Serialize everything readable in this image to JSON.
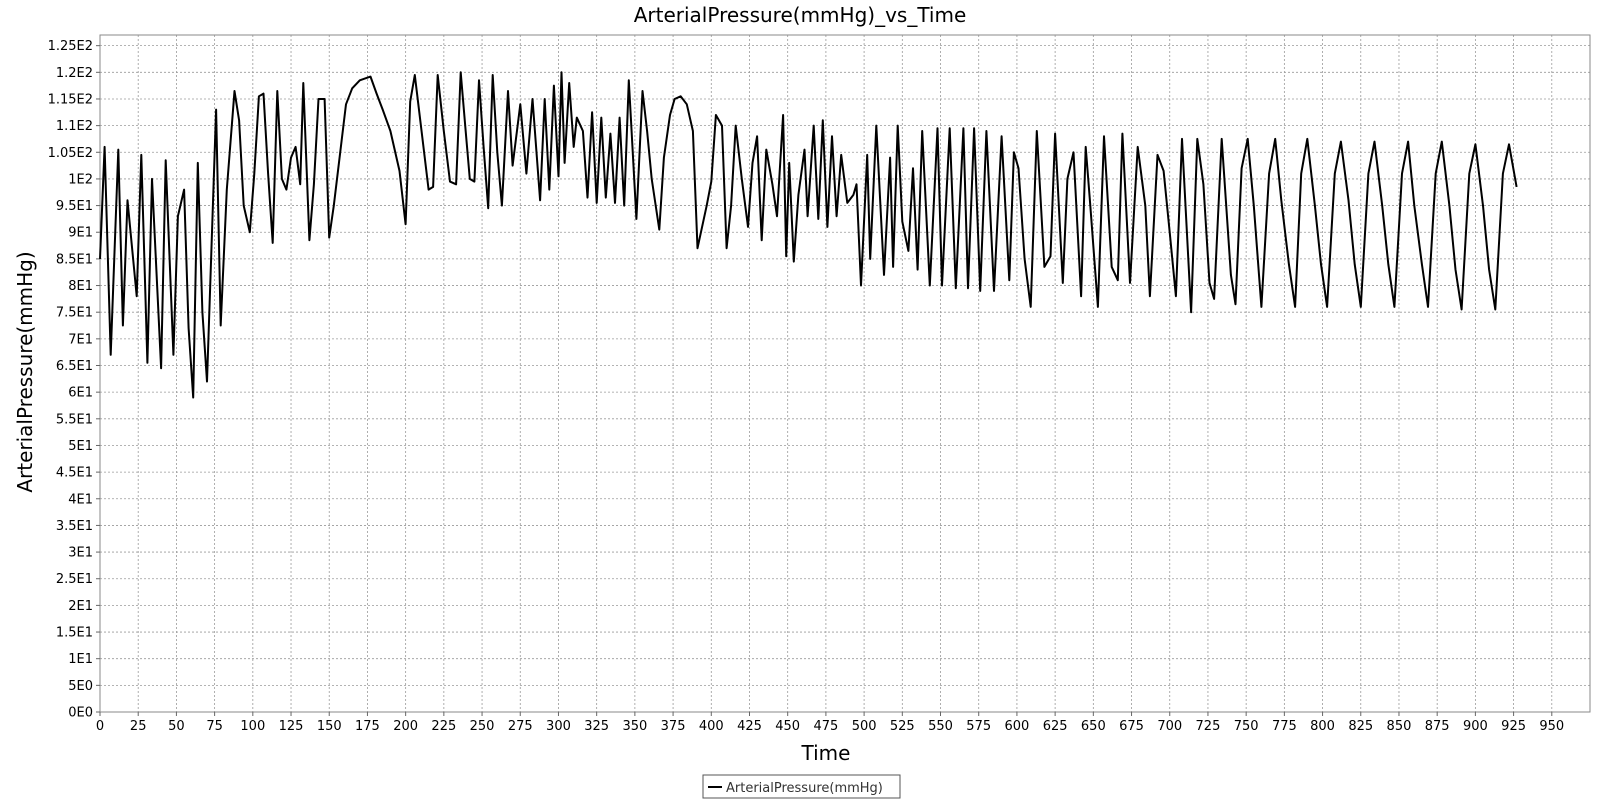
{
  "chart_data": {
    "type": "line",
    "title": "ArterialPressure(mmHg)_vs_Time",
    "xlabel": "Time",
    "ylabel": "ArterialPressure(mmHg)",
    "xlim": [
      0,
      975
    ],
    "ylim": [
      0,
      127
    ],
    "x_ticks": [
      0,
      25,
      50,
      75,
      100,
      125,
      150,
      175,
      200,
      225,
      250,
      275,
      300,
      325,
      350,
      375,
      400,
      425,
      450,
      475,
      500,
      525,
      550,
      575,
      600,
      625,
      650,
      675,
      700,
      725,
      750,
      775,
      800,
      825,
      850,
      875,
      900,
      925,
      950
    ],
    "y_ticks": [
      {
        "value": 0,
        "label": "0E0"
      },
      {
        "value": 5,
        "label": "5E0"
      },
      {
        "value": 10,
        "label": "1E1"
      },
      {
        "value": 15,
        "label": "1.5E1"
      },
      {
        "value": 20,
        "label": "2E1"
      },
      {
        "value": 25,
        "label": "2.5E1"
      },
      {
        "value": 30,
        "label": "3E1"
      },
      {
        "value": 35,
        "label": "3.5E1"
      },
      {
        "value": 40,
        "label": "4E1"
      },
      {
        "value": 45,
        "label": "4.5E1"
      },
      {
        "value": 50,
        "label": "5E1"
      },
      {
        "value": 55,
        "label": "5.5E1"
      },
      {
        "value": 60,
        "label": "6E1"
      },
      {
        "value": 65,
        "label": "6.5E1"
      },
      {
        "value": 70,
        "label": "7E1"
      },
      {
        "value": 75,
        "label": "7.5E1"
      },
      {
        "value": 80,
        "label": "8E1"
      },
      {
        "value": 85,
        "label": "8.5E1"
      },
      {
        "value": 90,
        "label": "9E1"
      },
      {
        "value": 95,
        "label": "9.5E1"
      },
      {
        "value": 100,
        "label": "1E2"
      },
      {
        "value": 105,
        "label": "1.05E2"
      },
      {
        "value": 110,
        "label": "1.1E2"
      },
      {
        "value": 115,
        "label": "1.15E2"
      },
      {
        "value": 120,
        "label": "1.2E2"
      },
      {
        "value": 125,
        "label": "1.25E2"
      }
    ],
    "grid": true,
    "legend_position": "bottom-center",
    "series": [
      {
        "name": "ArterialPressure(mmHg)",
        "color": "#000000",
        "points": [
          [
            0,
            85
          ],
          [
            3,
            106
          ],
          [
            7,
            67
          ],
          [
            12,
            105.5
          ],
          [
            15,
            72.5
          ],
          [
            18,
            96
          ],
          [
            24,
            78
          ],
          [
            27,
            104.5
          ],
          [
            31,
            65.5
          ],
          [
            34,
            100
          ],
          [
            40,
            64.5
          ],
          [
            43,
            103.5
          ],
          [
            48,
            67
          ],
          [
            51,
            93
          ],
          [
            55,
            98
          ],
          [
            58,
            72
          ],
          [
            61,
            59
          ],
          [
            64,
            103
          ],
          [
            67,
            75
          ],
          [
            70,
            62
          ],
          [
            76,
            113
          ],
          [
            79,
            72.5
          ],
          [
            83,
            98
          ],
          [
            88,
            116.5
          ],
          [
            91,
            111
          ],
          [
            94,
            95
          ],
          [
            98,
            90
          ],
          [
            101,
            101
          ],
          [
            104,
            115.5
          ],
          [
            107,
            116
          ],
          [
            110,
            101
          ],
          [
            113,
            88
          ],
          [
            116,
            116.5
          ],
          [
            119,
            100
          ],
          [
            122,
            98
          ],
          [
            125,
            104
          ],
          [
            128,
            106
          ],
          [
            131,
            99
          ],
          [
            133,
            118
          ],
          [
            137,
            88.5
          ],
          [
            140,
            99
          ],
          [
            143,
            115
          ],
          [
            147,
            115
          ],
          [
            150,
            89
          ],
          [
            153,
            95
          ],
          [
            158,
            107
          ],
          [
            161,
            114
          ],
          [
            165,
            117
          ],
          [
            170,
            118.5
          ],
          [
            177,
            119.2
          ],
          [
            181,
            116
          ],
          [
            185,
            113
          ],
          [
            190,
            109
          ],
          [
            196,
            101.5
          ],
          [
            200,
            91.5
          ],
          [
            203,
            114.5
          ],
          [
            206,
            119.5
          ],
          [
            210,
            110
          ],
          [
            215,
            98
          ],
          [
            218,
            98.5
          ],
          [
            221,
            119.5
          ],
          [
            225,
            109
          ],
          [
            229,
            99.5
          ],
          [
            233,
            99
          ],
          [
            236,
            120
          ],
          [
            239,
            110
          ],
          [
            242,
            100
          ],
          [
            245,
            99.5
          ],
          [
            248,
            118.5
          ],
          [
            251,
            106
          ],
          [
            254,
            94.5
          ],
          [
            257,
            119.5
          ],
          [
            260,
            105
          ],
          [
            263,
            95
          ],
          [
            267,
            116.5
          ],
          [
            270,
            102.5
          ],
          [
            275,
            114
          ],
          [
            279,
            101
          ],
          [
            283,
            115
          ],
          [
            288,
            96
          ],
          [
            291,
            115
          ],
          [
            294,
            98
          ],
          [
            297,
            117.5
          ],
          [
            300,
            100.5
          ],
          [
            302,
            120
          ],
          [
            304,
            103
          ],
          [
            307,
            118
          ],
          [
            310,
            106
          ],
          [
            312,
            111.5
          ],
          [
            316,
            109
          ],
          [
            319,
            96.5
          ],
          [
            322,
            112.5
          ],
          [
            325,
            95.5
          ],
          [
            328,
            111.5
          ],
          [
            331,
            96.5
          ],
          [
            334,
            108.5
          ],
          [
            337,
            95.5
          ],
          [
            340,
            111.5
          ],
          [
            343,
            95
          ],
          [
            346,
            118.5
          ],
          [
            351,
            92.5
          ],
          [
            355,
            116.5
          ],
          [
            358,
            109
          ],
          [
            361,
            100
          ],
          [
            366,
            90.5
          ],
          [
            369,
            104
          ],
          [
            373,
            112
          ],
          [
            376,
            115
          ],
          [
            380,
            115.5
          ],
          [
            384,
            114
          ],
          [
            388,
            109
          ],
          [
            391,
            87
          ],
          [
            397,
            95
          ],
          [
            400,
            99.5
          ],
          [
            403,
            112
          ],
          [
            407,
            110
          ],
          [
            410,
            87
          ],
          [
            413,
            95
          ],
          [
            416,
            110
          ],
          [
            420,
            100
          ],
          [
            424,
            91
          ],
          [
            427,
            103
          ],
          [
            430,
            108
          ],
          [
            433,
            88.5
          ],
          [
            436,
            105.5
          ],
          [
            440,
            99
          ],
          [
            443,
            93
          ],
          [
            447,
            112
          ],
          [
            449,
            85.5
          ],
          [
            451,
            103
          ],
          [
            454,
            84.5
          ],
          [
            457,
            97
          ],
          [
            461,
            105.5
          ],
          [
            463,
            93
          ],
          [
            467,
            110
          ],
          [
            470,
            92.5
          ],
          [
            473,
            111
          ],
          [
            476,
            91
          ],
          [
            479,
            108
          ],
          [
            482,
            93
          ],
          [
            485,
            104.5
          ],
          [
            489,
            95.5
          ],
          [
            493,
            97
          ],
          [
            495,
            99
          ],
          [
            498,
            80
          ],
          [
            502,
            104.5
          ],
          [
            504,
            85
          ],
          [
            508,
            110
          ],
          [
            513,
            82
          ],
          [
            517,
            104
          ],
          [
            519,
            83.5
          ],
          [
            522,
            110
          ],
          [
            525,
            92
          ],
          [
            529,
            86.5
          ],
          [
            532,
            102
          ],
          [
            535,
            83
          ],
          [
            538,
            109
          ],
          [
            543,
            80
          ],
          [
            548,
            109.5
          ],
          [
            551,
            80
          ],
          [
            556,
            109.5
          ],
          [
            560,
            79.5
          ],
          [
            565,
            109.5
          ],
          [
            568,
            79.5
          ],
          [
            572,
            109.5
          ],
          [
            576,
            79
          ],
          [
            580,
            109
          ],
          [
            585,
            79
          ],
          [
            590,
            108
          ],
          [
            595,
            81
          ],
          [
            598,
            105
          ],
          [
            601,
            102
          ],
          [
            605,
            85
          ],
          [
            609,
            76
          ],
          [
            613,
            109
          ],
          [
            618,
            83.5
          ],
          [
            622,
            85.5
          ],
          [
            625,
            108.5
          ],
          [
            630,
            80.5
          ],
          [
            633,
            100
          ],
          [
            637,
            105
          ],
          [
            642,
            78
          ],
          [
            645,
            106
          ],
          [
            648,
            95
          ],
          [
            653,
            76
          ],
          [
            657,
            108
          ],
          [
            662,
            83.5
          ],
          [
            666,
            81
          ],
          [
            669,
            108.5
          ],
          [
            674,
            80.5
          ],
          [
            679,
            106
          ],
          [
            684,
            95
          ],
          [
            687,
            78
          ],
          [
            692,
            104.5
          ],
          [
            696,
            101.5
          ],
          [
            700,
            90
          ],
          [
            704,
            78
          ],
          [
            708,
            107.5
          ],
          [
            714,
            75
          ],
          [
            718,
            107.5
          ],
          [
            722,
            99
          ],
          [
            726,
            80.5
          ],
          [
            729,
            77.5
          ],
          [
            734,
            107.5
          ],
          [
            740,
            82
          ],
          [
            743,
            76.5
          ],
          [
            747,
            102
          ],
          [
            751,
            107.5
          ],
          [
            755,
            95
          ],
          [
            760,
            76
          ],
          [
            765,
            101
          ],
          [
            769,
            107.5
          ],
          [
            773,
            96
          ],
          [
            778,
            84
          ],
          [
            782,
            76
          ],
          [
            786,
            101
          ],
          [
            790,
            107.5
          ],
          [
            795,
            95
          ],
          [
            799,
            84
          ],
          [
            803,
            76
          ],
          [
            808,
            101
          ],
          [
            812,
            107
          ],
          [
            817,
            96
          ],
          [
            821,
            84
          ],
          [
            825,
            76
          ],
          [
            830,
            101
          ],
          [
            834,
            107
          ],
          [
            839,
            95
          ],
          [
            843,
            84
          ],
          [
            847,
            76
          ],
          [
            852,
            101
          ],
          [
            856,
            107
          ],
          [
            860,
            95
          ],
          [
            865,
            84
          ],
          [
            869,
            76
          ],
          [
            874,
            101
          ],
          [
            878,
            107
          ],
          [
            883,
            95
          ],
          [
            887,
            83
          ],
          [
            891,
            75.5
          ],
          [
            896,
            101
          ],
          [
            900,
            106.5
          ],
          [
            905,
            95
          ],
          [
            909,
            83
          ],
          [
            913,
            75.5
          ],
          [
            918,
            101
          ],
          [
            922,
            106.5
          ],
          [
            927,
            98.5
          ]
        ]
      }
    ]
  }
}
